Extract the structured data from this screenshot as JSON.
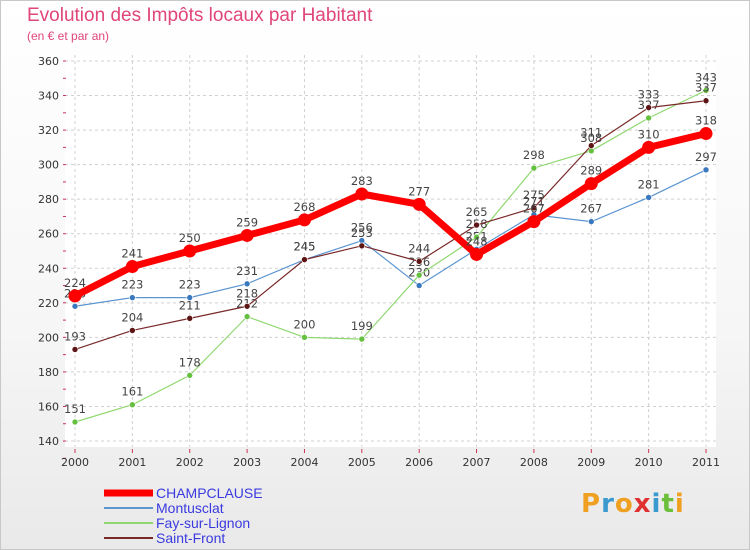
{
  "chart_data": {
    "type": "line",
    "title": "Evolution des Impôts locaux par Habitant",
    "subtitle": "(en € et par an)",
    "x": [
      "2000",
      "2001",
      "2002",
      "2003",
      "2004",
      "2005",
      "2006",
      "2007",
      "2008",
      "2009",
      "2010",
      "2011"
    ],
    "ylim": [
      140,
      360
    ],
    "yticks": [
      140,
      160,
      180,
      200,
      220,
      240,
      260,
      280,
      300,
      320,
      340,
      360
    ],
    "grid": true,
    "series": [
      {
        "name": "Montusclat",
        "color": "#5b95d0",
        "marker": "#3a78c0",
        "width": 1.2,
        "values": [
          218,
          223,
          223,
          231,
          245,
          256,
          230,
          251,
          271,
          267,
          281,
          297
        ]
      },
      {
        "name": "Fay-sur-Lignon",
        "color": "#8fd870",
        "marker": "#66c040",
        "width": 1.2,
        "values": [
          151,
          161,
          178,
          212,
          200,
          199,
          236,
          258,
          298,
          308,
          327,
          343
        ]
      },
      {
        "name": "Saint-Front",
        "color": "#7a2a2a",
        "marker": "#5c1414",
        "width": 1.2,
        "values": [
          193,
          204,
          211,
          218,
          245,
          253,
          244,
          265,
          275,
          311,
          333,
          337
        ]
      },
      {
        "name": "CHAMPCLAUSE",
        "color": "#ff0000",
        "marker": "#ff0000",
        "width": 7,
        "values": [
          224,
          241,
          250,
          259,
          268,
          283,
          277,
          248,
          267,
          289,
          310,
          318
        ]
      }
    ],
    "legend": [
      "CHAMPCLAUSE",
      "Montusclat",
      "Fay-sur-Lignon",
      "Saint-Front"
    ],
    "legend_position": "bottom-left"
  },
  "brand": {
    "letters": [
      "P",
      "r",
      "o",
      "x",
      "i",
      "t",
      "i"
    ],
    "colors": [
      "#f0a020",
      "#3a9ad0",
      "#f0a020",
      "#e03030",
      "#3a9ad0",
      "#6bbf3a",
      "#f0a020"
    ]
  }
}
